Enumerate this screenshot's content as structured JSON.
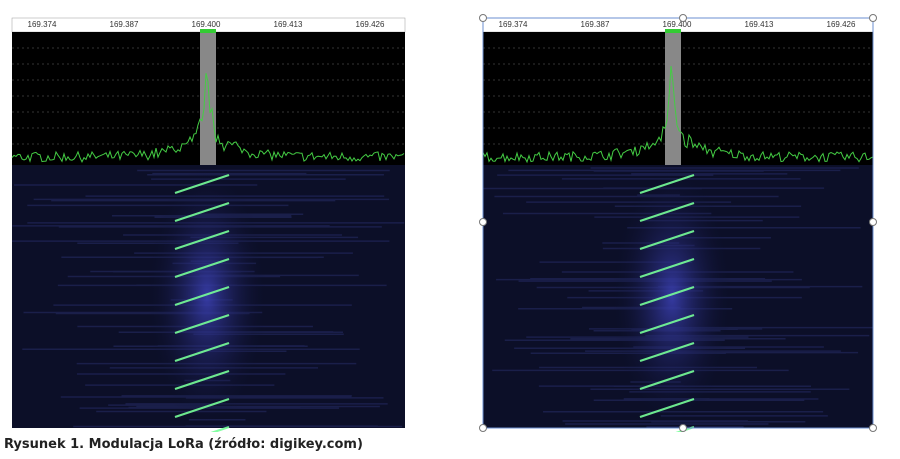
{
  "panels": [
    {
      "ticks": [
        "169.374",
        "169.387",
        "169.400",
        "169.413",
        "169.426"
      ]
    },
    {
      "ticks": [
        "169.374",
        "169.387",
        "169.400",
        "169.413",
        "169.426"
      ]
    }
  ],
  "caption": "Rysunek 1. Modulacja LoRa (źródło: digikey.com)"
}
